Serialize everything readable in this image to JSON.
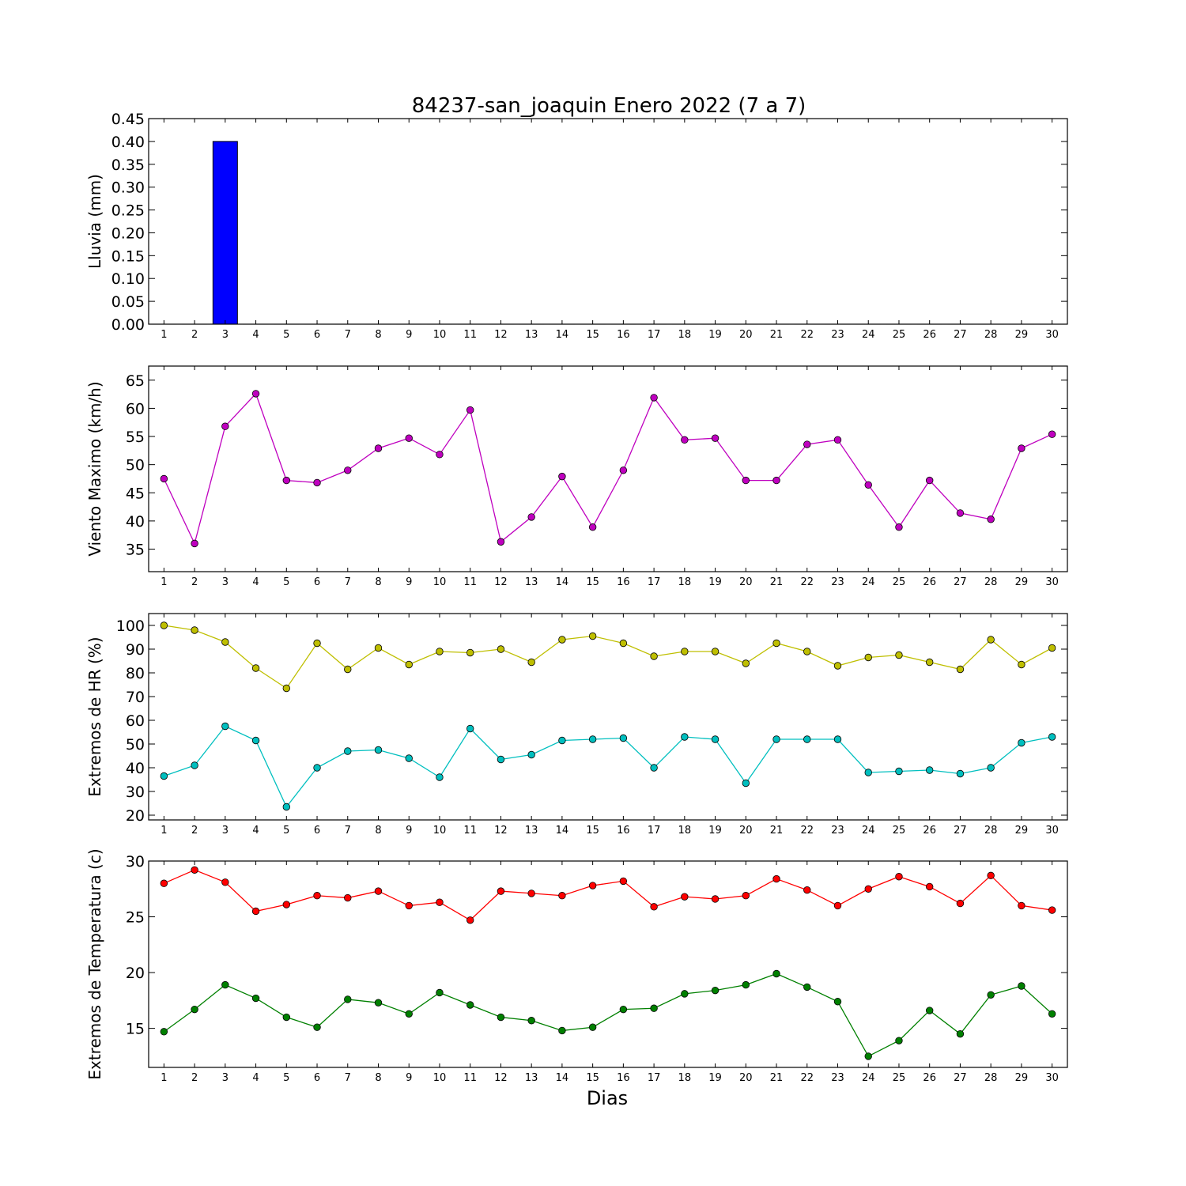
{
  "title": "84237-san_joaquin Enero 2022  (7 a 7)",
  "xlabel": "Dias",
  "colors": {
    "rain": "#0000ff",
    "wind": "#bf00bf",
    "hr_max": "#bfbf00",
    "hr_min": "#00bfbf",
    "t_max": "#ff0000",
    "t_min": "#008000"
  },
  "chart_data": [
    {
      "type": "bar",
      "ylabel": "Lluvia (mm)",
      "ylim": [
        0,
        0.45
      ],
      "yticks": [
        "0.00",
        "0.05",
        "0.10",
        "0.15",
        "0.20",
        "0.25",
        "0.30",
        "0.35",
        "0.40",
        "0.45"
      ],
      "categories": [
        1,
        2,
        3,
        4,
        5,
        6,
        7,
        8,
        9,
        10,
        11,
        12,
        13,
        14,
        15,
        16,
        17,
        18,
        19,
        20,
        21,
        22,
        23,
        24,
        25,
        26,
        27,
        28,
        29,
        30
      ],
      "values": [
        0,
        0,
        0.4,
        0,
        0,
        0,
        0,
        0,
        0,
        0,
        0,
        0,
        0,
        0,
        0,
        0,
        0,
        0,
        0,
        0,
        0,
        0,
        0,
        0,
        0,
        0,
        0,
        0,
        0,
        0
      ]
    },
    {
      "type": "line",
      "ylabel": "Viento Maximo (km/h)",
      "ylim": [
        31,
        67.5
      ],
      "yticks": [
        "35",
        "40",
        "45",
        "50",
        "55",
        "60",
        "65"
      ],
      "x": [
        1,
        2,
        3,
        4,
        5,
        6,
        7,
        8,
        9,
        10,
        11,
        12,
        13,
        14,
        15,
        16,
        17,
        18,
        19,
        20,
        21,
        22,
        23,
        24,
        25,
        26,
        27,
        28,
        29,
        30
      ],
      "series": [
        {
          "values": [
            47.5,
            36.0,
            56.8,
            62.6,
            47.2,
            46.8,
            49.0,
            52.9,
            54.7,
            51.8,
            59.7,
            36.3,
            40.7,
            47.9,
            38.9,
            49.0,
            61.9,
            54.4,
            54.7,
            47.2,
            47.2,
            53.6,
            54.4,
            46.4,
            38.9,
            47.2,
            41.4,
            40.3,
            52.9,
            55.4
          ]
        }
      ]
    },
    {
      "type": "line",
      "ylabel": "Extremos de HR (%)",
      "ylim": [
        18,
        105
      ],
      "yticks": [
        "20",
        "30",
        "40",
        "50",
        "60",
        "70",
        "80",
        "90",
        "100"
      ],
      "x": [
        1,
        2,
        3,
        4,
        5,
        6,
        7,
        8,
        9,
        10,
        11,
        12,
        13,
        14,
        15,
        16,
        17,
        18,
        19,
        20,
        21,
        22,
        23,
        24,
        25,
        26,
        27,
        28,
        29,
        30
      ],
      "series": [
        {
          "values": [
            100,
            98,
            93,
            82,
            73.5,
            92.5,
            81.5,
            90.5,
            83.5,
            89,
            88.5,
            90,
            84.5,
            94,
            95.5,
            92.5,
            87,
            89,
            89,
            84,
            92.5,
            89,
            83,
            86.5,
            87.5,
            84.5,
            81.5,
            94,
            83.5,
            90.5
          ]
        },
        {
          "values": [
            36.5,
            41,
            57.5,
            51.5,
            23.5,
            40,
            47,
            47.5,
            44,
            36,
            56.5,
            43.5,
            45.5,
            51.5,
            52,
            52.5,
            40,
            53,
            52,
            33.5,
            52,
            52,
            52,
            38,
            38.5,
            39,
            37.5,
            40,
            50.5,
            53
          ]
        }
      ]
    },
    {
      "type": "line",
      "ylabel": "Extremos de Temperatura (c)",
      "ylim": [
        11.5,
        30
      ],
      "yticks": [
        "15",
        "20",
        "25",
        "30"
      ],
      "x": [
        1,
        2,
        3,
        4,
        5,
        6,
        7,
        8,
        9,
        10,
        11,
        12,
        13,
        14,
        15,
        16,
        17,
        18,
        19,
        20,
        21,
        22,
        23,
        24,
        25,
        26,
        27,
        28,
        29,
        30
      ],
      "series": [
        {
          "values": [
            28.0,
            29.2,
            28.1,
            25.5,
            26.1,
            26.9,
            26.7,
            27.3,
            26.0,
            26.3,
            24.7,
            27.3,
            27.1,
            26.9,
            27.8,
            28.2,
            25.9,
            26.8,
            26.6,
            26.9,
            28.4,
            27.4,
            26.0,
            27.5,
            28.6,
            27.7,
            26.2,
            28.7,
            26.0,
            25.6
          ]
        },
        {
          "values": [
            14.7,
            16.7,
            18.9,
            17.7,
            16.0,
            15.1,
            17.6,
            17.3,
            16.3,
            18.2,
            17.1,
            16.0,
            15.7,
            14.8,
            15.1,
            16.7,
            16.8,
            18.1,
            18.4,
            18.9,
            19.9,
            18.7,
            17.4,
            12.5,
            13.9,
            16.6,
            14.5,
            18.0,
            18.8,
            16.3
          ]
        }
      ]
    }
  ]
}
